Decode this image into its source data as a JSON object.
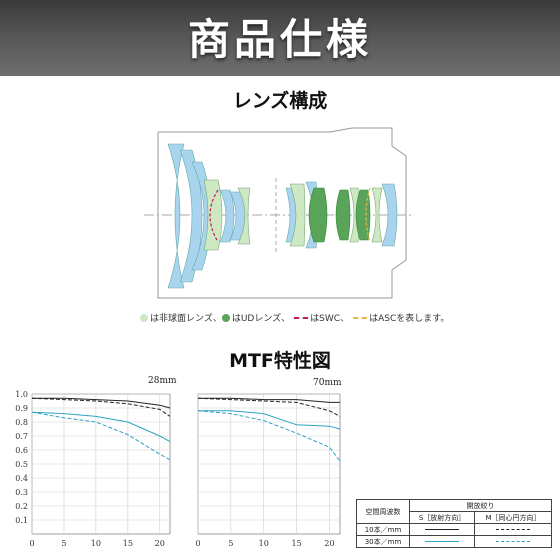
{
  "header": {
    "title": "商品仕様"
  },
  "lens_section": {
    "title": "レンズ構成"
  },
  "legend": {
    "aspherical": "は非球面レンズ、",
    "ud": "はUDレンズ、",
    "swc": "はSWC、",
    "asc": "はASCを表します。"
  },
  "mtf_section": {
    "title": "MTF特性図"
  },
  "colors": {
    "aspherical_green": "#cfe8c4",
    "ud_green": "#5aa45a",
    "swc_red": "#c0185a",
    "asc_yellow": "#e6b84a",
    "lens_blue": "#a9d4ee",
    "curve_black": "#222222",
    "curve_cyan": "#2fa3c3"
  },
  "chart_data": [
    {
      "type": "line",
      "title": "28mm",
      "x": [
        0,
        5,
        10,
        15,
        20,
        21.6
      ],
      "xticks": [
        0,
        5,
        10,
        15,
        20
      ],
      "yticks": [
        0.1,
        0.2,
        0.3,
        0.4,
        0.5,
        0.6,
        0.7,
        0.8,
        0.9,
        1.0
      ],
      "xlim": [
        0,
        21.6
      ],
      "ylim": [
        0,
        1.0
      ],
      "grid": true,
      "series": [
        {
          "key": "10-S",
          "values": [
            0.97,
            0.97,
            0.96,
            0.95,
            0.92,
            0.9
          ],
          "style": "solid",
          "color": "#222222"
        },
        {
          "key": "10-M",
          "values": [
            0.97,
            0.96,
            0.95,
            0.93,
            0.89,
            0.84
          ],
          "style": "dashed",
          "color": "#222222"
        },
        {
          "key": "30-S",
          "values": [
            0.87,
            0.86,
            0.84,
            0.8,
            0.7,
            0.66
          ],
          "style": "solid",
          "color": "#2fa3c3"
        },
        {
          "key": "30-M",
          "values": [
            0.87,
            0.83,
            0.8,
            0.71,
            0.57,
            0.53
          ],
          "style": "dashed",
          "color": "#2fa3c3"
        }
      ]
    },
    {
      "type": "line",
      "title": "70mm",
      "x": [
        0,
        5,
        10,
        15,
        20,
        21.6
      ],
      "xticks": [
        0,
        5,
        10,
        15,
        20
      ],
      "yticks": [
        0.1,
        0.2,
        0.3,
        0.4,
        0.5,
        0.6,
        0.7,
        0.8,
        0.9,
        1.0
      ],
      "xlim": [
        0,
        21.6
      ],
      "ylim": [
        0,
        1.0
      ],
      "grid": true,
      "series": [
        {
          "key": "10-S",
          "values": [
            0.97,
            0.97,
            0.96,
            0.96,
            0.94,
            0.94
          ],
          "style": "solid",
          "color": "#222222"
        },
        {
          "key": "10-M",
          "values": [
            0.97,
            0.96,
            0.95,
            0.94,
            0.88,
            0.84
          ],
          "style": "dashed",
          "color": "#222222"
        },
        {
          "key": "30-S",
          "values": [
            0.88,
            0.88,
            0.86,
            0.78,
            0.77,
            0.75
          ],
          "style": "solid",
          "color": "#2fa3c3"
        },
        {
          "key": "30-M",
          "values": [
            0.88,
            0.86,
            0.81,
            0.72,
            0.62,
            0.52
          ],
          "style": "dashed",
          "color": "#2fa3c3"
        }
      ]
    }
  ],
  "key_table": {
    "col1": "空間周波数",
    "aperture": "開放絞り",
    "s_col": "S［放射方向］",
    "m_col": "M［同心円方向］",
    "row_10": "10本／mm",
    "row_30": "30本／mm"
  }
}
